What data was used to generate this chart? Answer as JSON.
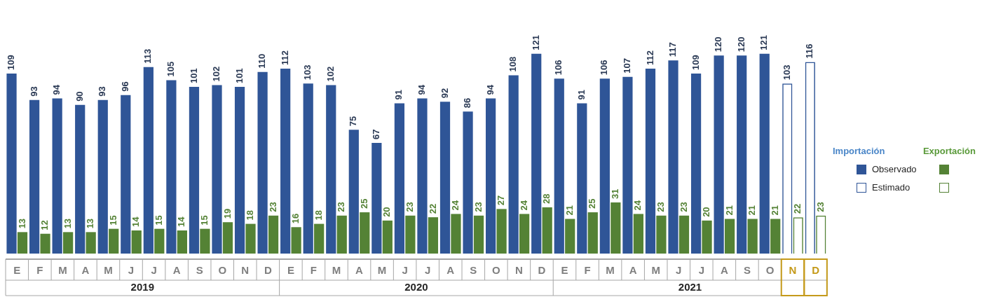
{
  "chart_data": {
    "type": "bar",
    "categories": [
      "E",
      "F",
      "M",
      "A",
      "M",
      "J",
      "J",
      "A",
      "S",
      "O",
      "N",
      "D",
      "E",
      "F",
      "M",
      "A",
      "M",
      "J",
      "J",
      "A",
      "S",
      "O",
      "N",
      "D",
      "E",
      "F",
      "M",
      "A",
      "M",
      "J",
      "J",
      "A",
      "S",
      "O",
      "N",
      "D"
    ],
    "series": [
      {
        "name": "Observado",
        "color": "#2f5597",
        "values": [
          109,
          93,
          94,
          90,
          93,
          96,
          113,
          105,
          101,
          102,
          101,
          110,
          112,
          103,
          102,
          75,
          67,
          91,
          94,
          92,
          86,
          94,
          108,
          121,
          106,
          91,
          106,
          107,
          112,
          117,
          109,
          120,
          120,
          121,
          null,
          null
        ]
      },
      {
        "color": "#548235",
        "values": [
          13,
          12,
          13,
          13,
          15,
          14,
          15,
          14,
          15,
          19,
          18,
          23,
          16,
          18,
          23,
          25,
          20,
          23,
          22,
          24,
          23,
          27,
          24,
          28,
          21,
          25,
          31,
          24,
          23,
          23,
          20,
          21,
          21,
          21,
          null,
          null
        ]
      },
      {
        "name": "Estimado",
        "color": "#2f5597",
        "values": [
          null,
          null,
          null,
          null,
          null,
          null,
          null,
          null,
          null,
          null,
          null,
          null,
          null,
          null,
          null,
          null,
          null,
          null,
          null,
          null,
          null,
          null,
          null,
          null,
          null,
          null,
          null,
          null,
          null,
          null,
          null,
          null,
          null,
          null,
          103,
          116
        ]
      },
      {
        "color": "#548235",
        "values": [
          null,
          null,
          null,
          null,
          null,
          null,
          null,
          null,
          null,
          null,
          null,
          null,
          null,
          null,
          null,
          null,
          null,
          null,
          null,
          null,
          null,
          null,
          null,
          null,
          null,
          null,
          null,
          null,
          null,
          null,
          null,
          null,
          null,
          null,
          22,
          23
        ]
      }
    ],
    "annotations": [
      "2019",
      "2020",
      "2021",
      "Importación",
      "Exportación"
    ],
    "data_labels": true,
    "legend": "right",
    "grid": false
  }
}
